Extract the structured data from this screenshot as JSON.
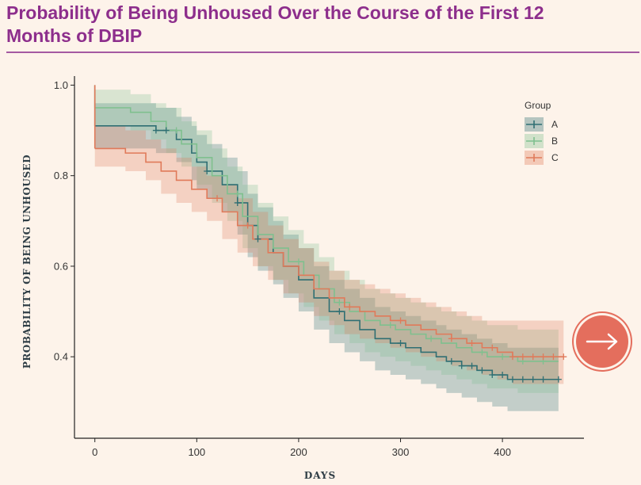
{
  "header": {
    "title": "Probability of Being Unhoused Over the Course of the First 12 Months of DBIP"
  },
  "nav": {
    "next_icon": "arrow-right-icon"
  },
  "colors": {
    "title": "#8d2e8c",
    "A": "#2f6f73",
    "B": "#7fc08e",
    "C": "#e07a5a",
    "next_button": "#e46e5d"
  },
  "chart_data": {
    "type": "line",
    "title": "Probability of Being Unhoused Over the Course of the First 12 Months of DBIP",
    "xlabel": "DAYS",
    "ylabel": "PROBABILITY OF BEING UNHOUSED",
    "xlim": [
      -20,
      480
    ],
    "ylim": [
      0.22,
      1.02
    ],
    "xticks": [
      "0",
      "100",
      "200",
      "300",
      "400"
    ],
    "xtick_values": [
      0,
      100,
      200,
      300,
      400
    ],
    "yticks": [
      "0.4",
      "0.6",
      "0.8",
      "1.0"
    ],
    "ytick_values": [
      0.4,
      0.6,
      0.8,
      1.0
    ],
    "grid": false,
    "step": true,
    "legend": {
      "title": "Group",
      "position": "top-right"
    },
    "series": [
      {
        "name": "A",
        "color": "#2f6f73",
        "x": [
          0,
          60,
          80,
          95,
          100,
          110,
          125,
          140,
          150,
          160,
          175,
          185,
          200,
          215,
          230,
          245,
          260,
          275,
          290,
          305,
          320,
          335,
          345,
          360,
          375,
          390,
          405,
          420,
          440,
          455
        ],
        "y": [
          0.91,
          0.9,
          0.88,
          0.85,
          0.83,
          0.81,
          0.78,
          0.74,
          0.69,
          0.66,
          0.63,
          0.6,
          0.57,
          0.53,
          0.5,
          0.48,
          0.46,
          0.44,
          0.43,
          0.42,
          0.41,
          0.4,
          0.39,
          0.38,
          0.37,
          0.36,
          0.35,
          0.35,
          0.35,
          0.35
        ],
        "lower": [
          0.86,
          0.85,
          0.83,
          0.79,
          0.77,
          0.75,
          0.72,
          0.67,
          0.62,
          0.59,
          0.56,
          0.53,
          0.5,
          0.46,
          0.43,
          0.41,
          0.39,
          0.37,
          0.36,
          0.35,
          0.34,
          0.33,
          0.32,
          0.31,
          0.3,
          0.29,
          0.28,
          0.28,
          0.28,
          0.28
        ],
        "upper": [
          0.96,
          0.95,
          0.93,
          0.91,
          0.89,
          0.87,
          0.84,
          0.81,
          0.76,
          0.73,
          0.7,
          0.67,
          0.64,
          0.6,
          0.57,
          0.55,
          0.53,
          0.51,
          0.5,
          0.49,
          0.48,
          0.47,
          0.46,
          0.45,
          0.44,
          0.43,
          0.42,
          0.42,
          0.42,
          0.42
        ]
      },
      {
        "name": "B",
        "color": "#7fc08e",
        "x": [
          0,
          35,
          55,
          70,
          85,
          100,
          115,
          130,
          145,
          160,
          175,
          190,
          205,
          220,
          235,
          250,
          265,
          280,
          295,
          310,
          325,
          340,
          355,
          370,
          385,
          400,
          415,
          430,
          445,
          455
        ],
        "y": [
          0.95,
          0.94,
          0.92,
          0.9,
          0.87,
          0.84,
          0.8,
          0.76,
          0.71,
          0.67,
          0.64,
          0.61,
          0.58,
          0.55,
          0.52,
          0.5,
          0.48,
          0.47,
          0.46,
          0.45,
          0.44,
          0.43,
          0.42,
          0.41,
          0.4,
          0.4,
          0.39,
          0.39,
          0.39,
          0.39
        ],
        "lower": [
          0.91,
          0.9,
          0.88,
          0.85,
          0.82,
          0.78,
          0.74,
          0.7,
          0.64,
          0.6,
          0.57,
          0.54,
          0.51,
          0.48,
          0.45,
          0.43,
          0.41,
          0.4,
          0.39,
          0.38,
          0.37,
          0.36,
          0.35,
          0.34,
          0.33,
          0.33,
          0.32,
          0.32,
          0.32,
          0.32
        ],
        "upper": [
          0.99,
          0.98,
          0.96,
          0.95,
          0.92,
          0.9,
          0.86,
          0.82,
          0.78,
          0.74,
          0.71,
          0.68,
          0.65,
          0.62,
          0.59,
          0.57,
          0.55,
          0.54,
          0.53,
          0.52,
          0.51,
          0.5,
          0.49,
          0.48,
          0.47,
          0.47,
          0.46,
          0.46,
          0.46,
          0.46
        ]
      },
      {
        "name": "C",
        "color": "#e07a5a",
        "x": [
          0,
          30,
          50,
          65,
          80,
          95,
          110,
          125,
          140,
          155,
          170,
          185,
          200,
          215,
          230,
          245,
          260,
          275,
          290,
          305,
          320,
          335,
          350,
          365,
          380,
          395,
          410,
          425,
          440,
          460
        ],
        "y": [
          0.86,
          0.85,
          0.83,
          0.81,
          0.79,
          0.77,
          0.75,
          0.72,
          0.69,
          0.66,
          0.63,
          0.6,
          0.58,
          0.55,
          0.53,
          0.51,
          0.5,
          0.49,
          0.48,
          0.47,
          0.46,
          0.45,
          0.44,
          0.43,
          0.42,
          0.41,
          0.4,
          0.4,
          0.4,
          0.4
        ],
        "lower": [
          0.82,
          0.81,
          0.79,
          0.76,
          0.74,
          0.72,
          0.7,
          0.66,
          0.63,
          0.6,
          0.57,
          0.54,
          0.52,
          0.49,
          0.47,
          0.45,
          0.44,
          0.43,
          0.42,
          0.41,
          0.4,
          0.39,
          0.38,
          0.37,
          0.36,
          0.35,
          0.34,
          0.34,
          0.34,
          0.34
        ],
        "upper": [
          0.91,
          0.9,
          0.88,
          0.86,
          0.84,
          0.82,
          0.8,
          0.78,
          0.75,
          0.72,
          0.69,
          0.66,
          0.64,
          0.61,
          0.59,
          0.57,
          0.56,
          0.55,
          0.54,
          0.53,
          0.52,
          0.51,
          0.5,
          0.49,
          0.48,
          0.48,
          0.48,
          0.48,
          0.48,
          0.48
        ]
      }
    ],
    "censor_marks": {
      "A": [
        60,
        70,
        110,
        140,
        160,
        240,
        300,
        350,
        360,
        370,
        380,
        390,
        400,
        410,
        420,
        430,
        440,
        455
      ],
      "B": [
        80,
        140,
        200,
        240,
        290,
        330,
        380,
        400,
        420,
        440
      ],
      "C": [
        120,
        150,
        250,
        300,
        350,
        370,
        390,
        410,
        420,
        430,
        440,
        450,
        460
      ]
    }
  }
}
